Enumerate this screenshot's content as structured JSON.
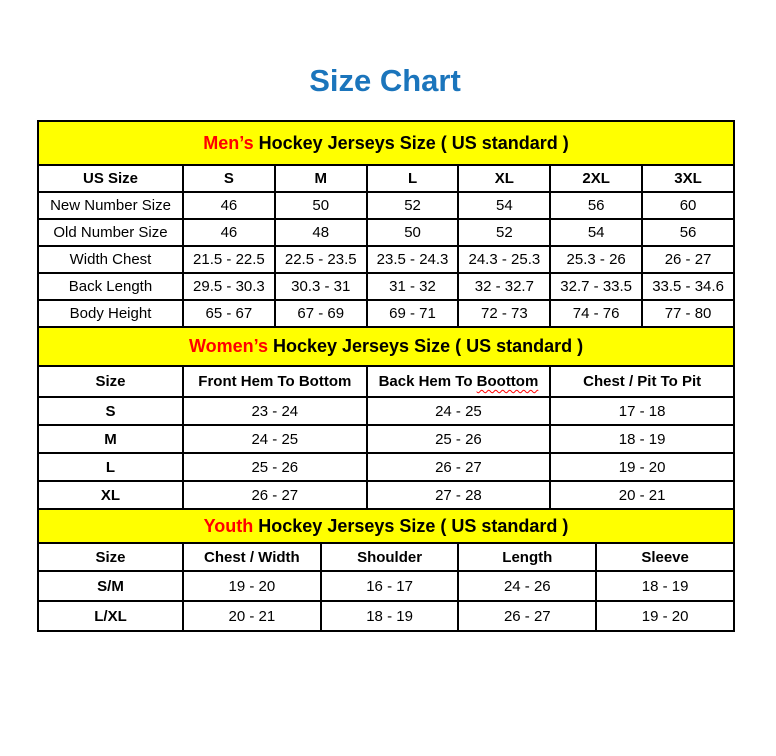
{
  "page_title": "Size Chart",
  "colors": {
    "title_blue": "#1b75bc",
    "band_yellow": "#ffff00",
    "highlight_red": "#ff0000",
    "border_black": "#000000"
  },
  "tables": [
    {
      "id": "men",
      "title_highlight": "Men’s",
      "title_rest": " Hockey Jerseys Size ( US standard )",
      "columns": [
        "US Size",
        "S",
        "M",
        "L",
        "XL",
        "2XL",
        "3XL"
      ],
      "rows": [
        [
          "New Number Size",
          "46",
          "50",
          "52",
          "54",
          "56",
          "60"
        ],
        [
          "Old Number Size",
          "46",
          "48",
          "50",
          "52",
          "54",
          "56"
        ],
        [
          "Width Chest",
          "21.5 - 22.5",
          "22.5 - 23.5",
          "23.5 - 24.3",
          "24.3 - 25.3",
          "25.3 - 26",
          "26 - 27"
        ],
        [
          "Back Length",
          "29.5 - 30.3",
          "30.3 - 31",
          "31 - 32",
          "32 - 32.7",
          "32.7 - 33.5",
          "33.5 - 34.6"
        ],
        [
          "Body Height",
          "65 - 67",
          "67 - 69",
          "69 - 71",
          "72 - 73",
          "74 - 76",
          "77 - 80"
        ]
      ]
    },
    {
      "id": "women",
      "title_highlight": "Women’s",
      "title_rest": " Hockey Jerseys Size ( US standard )",
      "columns": [
        "Size",
        "Front Hem To Bottom",
        "Back Hem To Boottom",
        "Chest / Pit To Pit"
      ],
      "squiggle": {
        "col": 2,
        "word": "Boottom"
      },
      "rows": [
        [
          "S",
          "23 - 24",
          "24 - 25",
          "17 - 18"
        ],
        [
          "M",
          "24 - 25",
          "25 - 26",
          "18 - 19"
        ],
        [
          "L",
          "25 - 26",
          "26 - 27",
          "19 - 20"
        ],
        [
          "XL",
          "26 - 27",
          "27 - 28",
          "20 - 21"
        ]
      ]
    },
    {
      "id": "youth",
      "title_highlight": "Youth",
      "title_rest": " Hockey Jerseys Size ( US standard )",
      "columns": [
        "Size",
        "Chest / Width",
        "Shoulder",
        "Length",
        "Sleeve"
      ],
      "rows": [
        [
          "S/M",
          "19 - 20",
          "16 - 17",
          "24 - 26",
          "18 - 19"
        ],
        [
          "L/XL",
          "20 - 21",
          "18 - 19",
          "26 - 27",
          "19 - 20"
        ]
      ]
    }
  ]
}
